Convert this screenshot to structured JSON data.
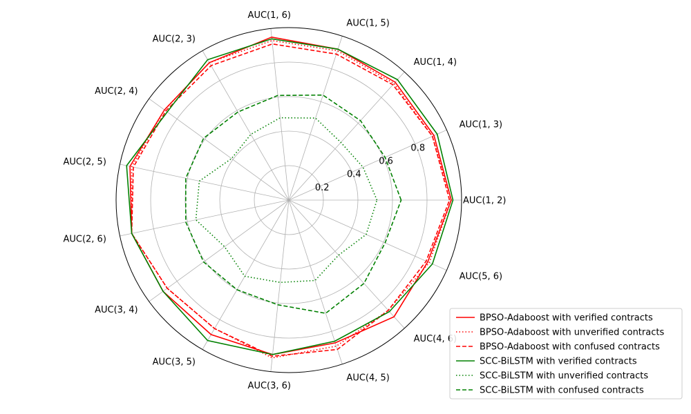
{
  "chart_data": {
    "type": "radar",
    "categories": [
      "AUC(1, 2)",
      "AUC(1, 3)",
      "AUC(1, 4)",
      "AUC(1, 5)",
      "AUC(1, 6)",
      "AUC(2, 3)",
      "AUC(2, 4)",
      "AUC(2, 5)",
      "AUC(2, 6)",
      "AUC(3, 4)",
      "AUC(3, 5)",
      "AUC(3, 6)",
      "AUC(4, 5)",
      "AUC(4, 6)",
      "AUC(5, 6)"
    ],
    "radial_ticks": [
      0.2,
      0.4,
      0.6,
      0.8
    ],
    "radial_tick_labels": [
      "0.2",
      "0.4",
      "0.6",
      "0.8"
    ],
    "rlim": [
      0,
      1.0
    ],
    "grid": true,
    "legend_position": "lower-right",
    "series": [
      {
        "name": "BPSO-Adaboost with verified contracts",
        "color": "#ff0000",
        "linestyle": "solid",
        "values": [
          0.94,
          0.92,
          0.92,
          0.92,
          0.95,
          0.92,
          0.89,
          0.94,
          0.93,
          0.9,
          0.9,
          0.9,
          0.87,
          0.91,
          0.88
        ]
      },
      {
        "name": "BPSO-Adaboost with unverified contracts",
        "color": "#ff0000",
        "linestyle": "dotted",
        "values": [
          0.94,
          0.91,
          0.91,
          0.91,
          0.93,
          0.92,
          0.89,
          0.93,
          0.93,
          0.87,
          0.86,
          0.92,
          0.89,
          0.86,
          0.89
        ]
      },
      {
        "name": "BPSO-Adaboost with confused contracts",
        "color": "#ff0000",
        "linestyle": "dashed",
        "values": [
          0.93,
          0.91,
          0.9,
          0.89,
          0.91,
          0.9,
          0.88,
          0.92,
          0.93,
          0.87,
          0.86,
          0.91,
          0.91,
          0.86,
          0.87
        ]
      },
      {
        "name": "SCC-BiLSTM with verified contracts",
        "color": "#008000",
        "linestyle": "solid",
        "values": [
          0.95,
          0.94,
          0.94,
          0.92,
          0.94,
          0.94,
          0.87,
          0.96,
          0.93,
          0.9,
          0.94,
          0.9,
          0.86,
          0.87,
          0.91
        ]
      },
      {
        "name": "SCC-BiLSTM with unverified contracts",
        "color": "#008000",
        "linestyle": "dotted",
        "values": [
          0.51,
          0.47,
          0.45,
          0.5,
          0.48,
          0.44,
          0.41,
          0.53,
          0.55,
          0.46,
          0.51,
          0.48,
          0.49,
          0.43,
          0.49
        ]
      },
      {
        "name": "SCC-BiLSTM with confused contracts",
        "color": "#008000",
        "linestyle": "dashed",
        "values": [
          0.65,
          0.61,
          0.62,
          0.64,
          0.61,
          0.59,
          0.61,
          0.61,
          0.61,
          0.61,
          0.6,
          0.61,
          0.69,
          0.65,
          0.61
        ]
      }
    ]
  }
}
